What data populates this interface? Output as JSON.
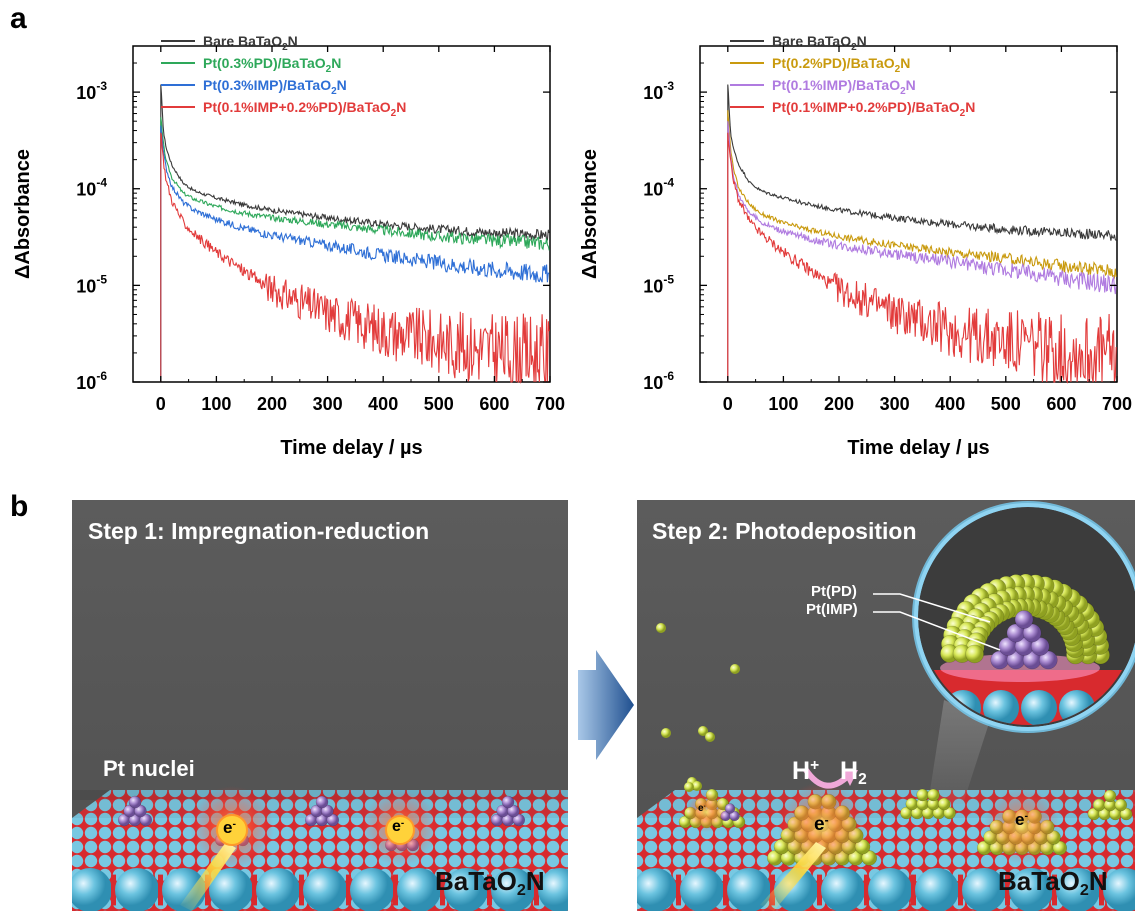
{
  "labels": {
    "a": "a",
    "b": "b"
  },
  "chart_data": [
    {
      "type": "line",
      "xlabel": "Time delay / µs",
      "ylabel": "ΔAbsorbance",
      "xlim": [
        -50,
        700
      ],
      "ylim": [
        1e-06,
        0.003
      ],
      "yscale": "log",
      "xticks": [
        0,
        100,
        200,
        300,
        400,
        500,
        600,
        700
      ],
      "yticks": [
        {
          "base": "10",
          "exp": "-6",
          "value": 1e-06
        },
        {
          "base": "10",
          "exp": "-5",
          "value": 1e-05
        },
        {
          "base": "10",
          "exp": "-4",
          "value": 0.0001
        },
        {
          "base": "10",
          "exp": "-3",
          "value": 0.001
        }
      ],
      "legend_position": "top",
      "series": [
        {
          "name_pre": "Bare BaTaO",
          "name_sub": "2",
          "name_post": "N",
          "color": "#3a3a3a",
          "peak": 0.0012,
          "x": [
            0,
            5,
            10,
            20,
            40,
            60,
            100,
            150,
            200,
            300,
            400,
            500,
            600,
            700
          ],
          "y": [
            0.0012,
            0.00038,
            0.00026,
            0.000175,
            0.000115,
            9.5e-05,
            8e-05,
            6.8e-05,
            6e-05,
            5e-05,
            4.3e-05,
            3.8e-05,
            3.5e-05,
            3.3e-05
          ]
        },
        {
          "name_pre": "Pt(0.3%PD)/BaTaO",
          "name_sub": "2",
          "name_post": "N",
          "color": "#2ea85a",
          "peak": 0.00055,
          "x": [
            0,
            5,
            10,
            20,
            40,
            60,
            100,
            150,
            200,
            300,
            400,
            500,
            600,
            700
          ],
          "y": [
            0.00055,
            0.00028,
            0.00019,
            0.00013,
            9e-05,
            7.8e-05,
            6.5e-05,
            5.6e-05,
            5e-05,
            4.3e-05,
            3.7e-05,
            3.2e-05,
            2.9e-05,
            2.7e-05
          ]
        },
        {
          "name_pre": "Pt(0.3%IMP)/BaTaO",
          "name_sub": "2",
          "name_post": "N",
          "color": "#2e6fd6",
          "peak": 0.00045,
          "x": [
            0,
            5,
            10,
            20,
            40,
            60,
            100,
            150,
            200,
            300,
            400,
            500,
            600,
            700
          ],
          "y": [
            0.00045,
            0.00023,
            0.00016,
            0.000105,
            7.2e-05,
            6e-05,
            4.8e-05,
            3.9e-05,
            3.3e-05,
            2.6e-05,
            2.05e-05,
            1.7e-05,
            1.45e-05,
            1.3e-05
          ]
        },
        {
          "name_pre": "Pt(0.1%IMP+0.2%PD)/BaTaO",
          "name_sub": "2",
          "name_post": "N",
          "color": "#e23b3b",
          "peak": 0.00038,
          "x": [
            0,
            5,
            10,
            20,
            40,
            60,
            100,
            150,
            200,
            300,
            400,
            500,
            600,
            700
          ],
          "y": [
            0.00038,
            0.00019,
            0.00012,
            7.5e-05,
            4.5e-05,
            3.4e-05,
            2.2e-05,
            1.4e-05,
            9e-06,
            5.2e-06,
            3.4e-06,
            2.6e-06,
            2.1e-06,
            1.8e-06
          ]
        }
      ]
    },
    {
      "type": "line",
      "xlabel": "Time delay / µs",
      "ylabel": "ΔAbsorbance",
      "xlim": [
        -50,
        700
      ],
      "ylim": [
        1e-06,
        0.003
      ],
      "yscale": "log",
      "xticks": [
        0,
        100,
        200,
        300,
        400,
        500,
        600,
        700
      ],
      "yticks": [
        {
          "base": "10",
          "exp": "-6",
          "value": 1e-06
        },
        {
          "base": "10",
          "exp": "-5",
          "value": 1e-05
        },
        {
          "base": "10",
          "exp": "-4",
          "value": 0.0001
        },
        {
          "base": "10",
          "exp": "-3",
          "value": 0.001
        }
      ],
      "legend_position": "top",
      "series": [
        {
          "name_pre": "Bare BaTaO",
          "name_sub": "2",
          "name_post": "N",
          "color": "#3a3a3a",
          "peak": 0.0012,
          "x": [
            0,
            5,
            10,
            20,
            40,
            60,
            100,
            150,
            200,
            300,
            400,
            500,
            600,
            700
          ],
          "y": [
            0.0012,
            0.00038,
            0.00026,
            0.000175,
            0.000115,
            9.5e-05,
            8e-05,
            6.8e-05,
            6e-05,
            5e-05,
            4.3e-05,
            3.8e-05,
            3.5e-05,
            3.3e-05
          ]
        },
        {
          "name_pre": "Pt(0.2%PD)/BaTaO",
          "name_sub": "2",
          "name_post": "N",
          "color": "#c99a0e",
          "peak": 0.00065,
          "x": [
            0,
            5,
            10,
            20,
            40,
            60,
            100,
            150,
            200,
            300,
            400,
            500,
            600,
            700
          ],
          "y": [
            0.00065,
            0.00026,
            0.00016,
            0.0001,
            6.8e-05,
            5.5e-05,
            4.4e-05,
            3.7e-05,
            3.2e-05,
            2.6e-05,
            2.2e-05,
            1.9e-05,
            1.6e-05,
            1.4e-05
          ]
        },
        {
          "name_pre": "Pt(0.1%IMP)/BaTaO",
          "name_sub": "2",
          "name_post": "N",
          "color": "#b07be0",
          "peak": 0.0005,
          "x": [
            0,
            5,
            10,
            20,
            40,
            60,
            100,
            150,
            200,
            300,
            400,
            500,
            600,
            700
          ],
          "y": [
            0.0005,
            0.00022,
            0.000135,
            8.5e-05,
            5.6e-05,
            4.5e-05,
            3.6e-05,
            3e-05,
            2.6e-05,
            2.1e-05,
            1.75e-05,
            1.45e-05,
            1.2e-05,
            1e-05
          ]
        },
        {
          "name_pre": "Pt(0.1%IMP+0.2%PD)/BaTaO",
          "name_sub": "2",
          "name_post": "N",
          "color": "#e23b3b",
          "peak": 0.00038,
          "x": [
            0,
            5,
            10,
            20,
            40,
            60,
            100,
            150,
            200,
            300,
            400,
            500,
            600,
            700
          ],
          "y": [
            0.00038,
            0.00019,
            0.00012,
            7.5e-05,
            4.5e-05,
            3.4e-05,
            2.2e-05,
            1.4e-05,
            9e-06,
            5.2e-06,
            3.4e-06,
            2.6e-06,
            2.1e-06,
            1.8e-06
          ]
        }
      ]
    }
  ],
  "diagram": {
    "step1": {
      "title": "Step 1: Impregnation-reduction",
      "nuclei_label": "Pt nuclei",
      "electron": "e",
      "electron_sup": "-",
      "substrate_pre": "BaTaO",
      "substrate_sub": "2",
      "substrate_post": "N"
    },
    "step2": {
      "title": "Step 2: Photodeposition",
      "pd_label": "Pt(PD)",
      "imp_label": "Pt(IMP)",
      "proton": "H",
      "proton_sup": "+",
      "hydrogen": "H",
      "hydrogen_sub": "2",
      "electron": "e",
      "electron_sup": "-",
      "substrate_pre": "BaTaO",
      "substrate_sub": "2",
      "substrate_post": "N"
    },
    "colors": {
      "panel_bg": "#5a5a5a",
      "substrate_blue": "#6cc4e0",
      "substrate_red": "#e0202a",
      "pt_imp": "#a98ad0",
      "pt_pd": "#d8e85a",
      "arrow": "#2f6cb0",
      "glow": "#ff4a3a"
    }
  }
}
